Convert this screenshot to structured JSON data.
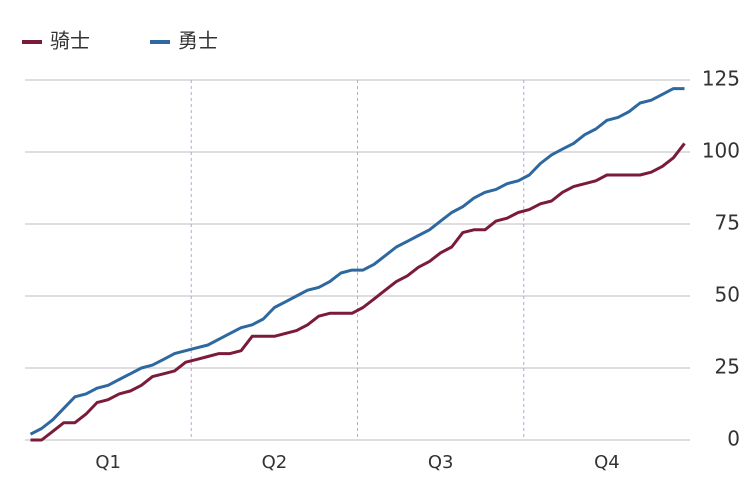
{
  "chart_data": {
    "type": "line",
    "categories": [
      null,
      null,
      null,
      null,
      null,
      null,
      null,
      "Q1",
      null,
      null,
      null,
      null,
      null,
      null,
      null,
      null,
      null,
      null,
      null,
      null,
      null,
      null,
      "Q2",
      null,
      null,
      null,
      null,
      null,
      null,
      null,
      null,
      null,
      null,
      null,
      null,
      null,
      null,
      "Q3",
      null,
      null,
      null,
      null,
      null,
      null,
      null,
      null,
      null,
      null,
      null,
      null,
      null,
      null,
      "Q4",
      null,
      null,
      null,
      null,
      null,
      null,
      null
    ],
    "series": [
      {
        "name": "骑士",
        "color": "#7b1b3a",
        "values": [
          0,
          0,
          3,
          6,
          6,
          9,
          13,
          14,
          16,
          17,
          19,
          22,
          23,
          24,
          27,
          28,
          29,
          30,
          30,
          31,
          36,
          36,
          36,
          37,
          38,
          40,
          43,
          44,
          44,
          44,
          46,
          49,
          52,
          55,
          57,
          60,
          62,
          65,
          67,
          72,
          73,
          73,
          76,
          77,
          79,
          80,
          82,
          83,
          86,
          88,
          89,
          90,
          92,
          92,
          92,
          92,
          93,
          95,
          98,
          103
        ]
      },
      {
        "name": "勇士",
        "color": "#2d68a0",
        "values": [
          2,
          4,
          7,
          11,
          15,
          16,
          18,
          19,
          21,
          23,
          25,
          26,
          28,
          30,
          31,
          32,
          33,
          35,
          37,
          39,
          40,
          42,
          46,
          48,
          50,
          52,
          53,
          55,
          58,
          59,
          59,
          61,
          64,
          67,
          69,
          71,
          73,
          76,
          79,
          81,
          84,
          86,
          87,
          89,
          90,
          92,
          96,
          99,
          101,
          103,
          106,
          108,
          111,
          112,
          114,
          117,
          118,
          120,
          122,
          122
        ]
      }
    ],
    "ylim": [
      0,
      125
    ],
    "yticks": [
      0,
      25,
      50,
      75,
      100,
      125
    ],
    "grid": true,
    "legend": "top-left"
  }
}
